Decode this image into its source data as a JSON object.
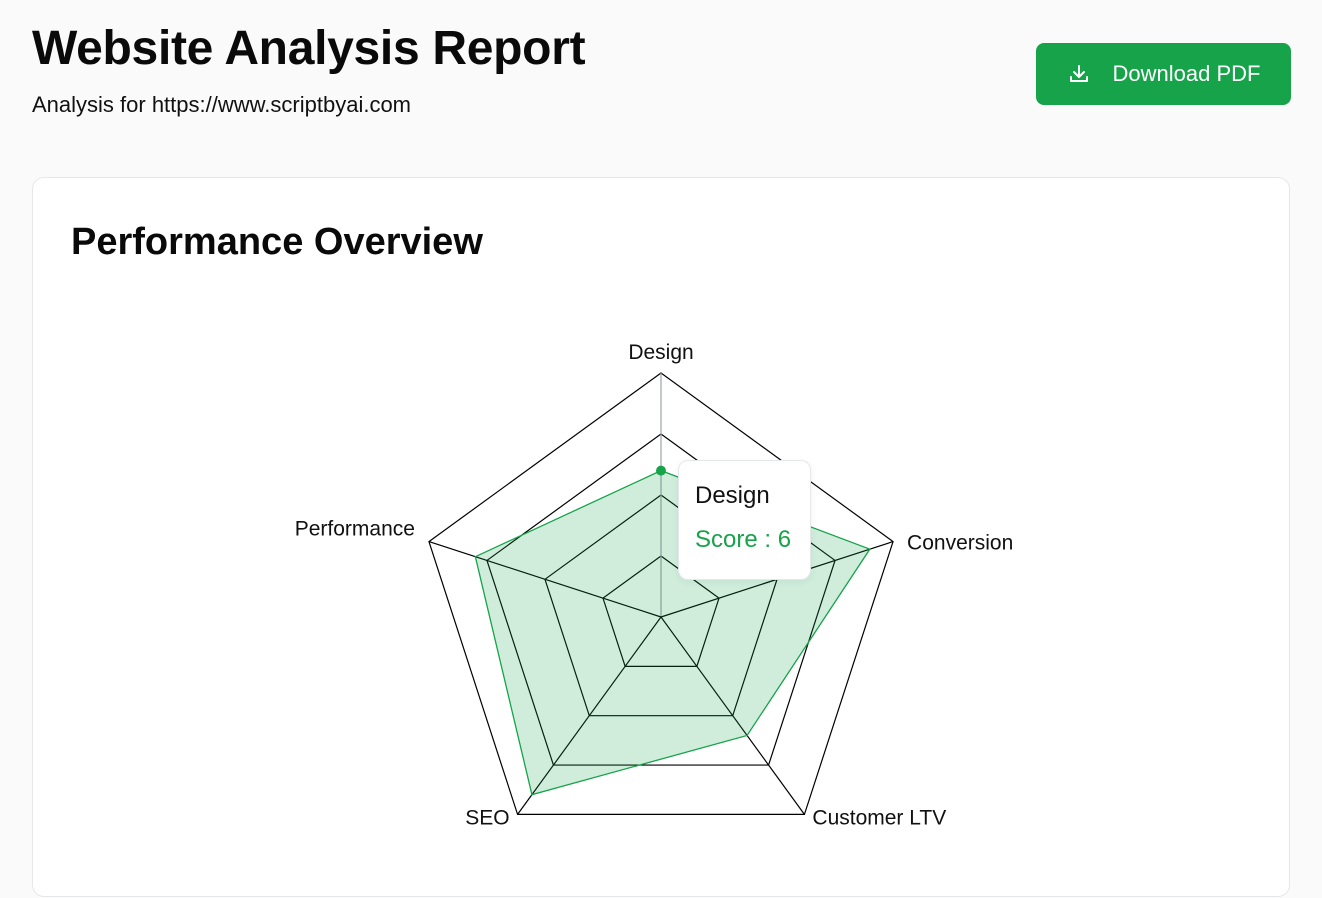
{
  "header": {
    "title": "Website Analysis Report",
    "subtitle": "Analysis for https://www.scriptbyai.com",
    "download_label": "Download PDF"
  },
  "card": {
    "title": "Performance Overview"
  },
  "tooltip": {
    "title": "Design",
    "value_label": "Score",
    "value": 6
  },
  "colors": {
    "accent": "#16a34a",
    "fill": "#d1eadb",
    "grid": "#000000"
  },
  "chart_data": {
    "type": "radar",
    "categories": [
      "Design",
      "Conversion",
      "Customer LTV",
      "SEO",
      "Performance"
    ],
    "series": [
      {
        "values": [
          6,
          9,
          6,
          9,
          8
        ]
      }
    ],
    "rlim": [
      0,
      10
    ],
    "rings": 4
  }
}
